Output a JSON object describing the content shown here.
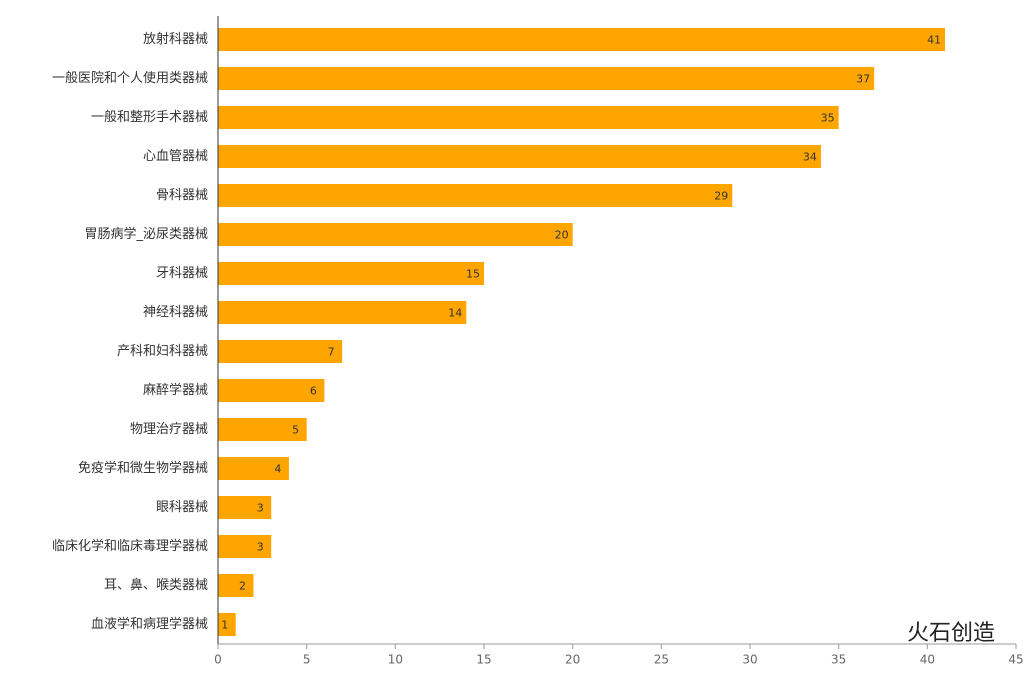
{
  "chart_data": {
    "type": "bar",
    "orientation": "horizontal",
    "color": "#ffa500",
    "categories": [
      "放射科器械",
      "一般医院和个人使用类器械",
      "一般和整形手术器械",
      "心血管器械",
      "骨科器械",
      "胃肠病学_泌尿类器械",
      "牙科器械",
      "神经科器械",
      "产科和妇科器械",
      "麻醉学器械",
      "物理治疗器械",
      "免疫学和微生物学器械",
      "眼科器械",
      "临床化学和临床毒理学器械",
      "耳、鼻、喉类器械",
      "血液学和病理学器械"
    ],
    "values": [
      41,
      37,
      35,
      34,
      29,
      20,
      15,
      14,
      7,
      6,
      5,
      4,
      3,
      3,
      2,
      1
    ],
    "xlim": [
      0,
      45
    ],
    "xticks": [
      0,
      5,
      10,
      15,
      20,
      25,
      30,
      35,
      40,
      45
    ]
  },
  "watermark": "火石创造"
}
